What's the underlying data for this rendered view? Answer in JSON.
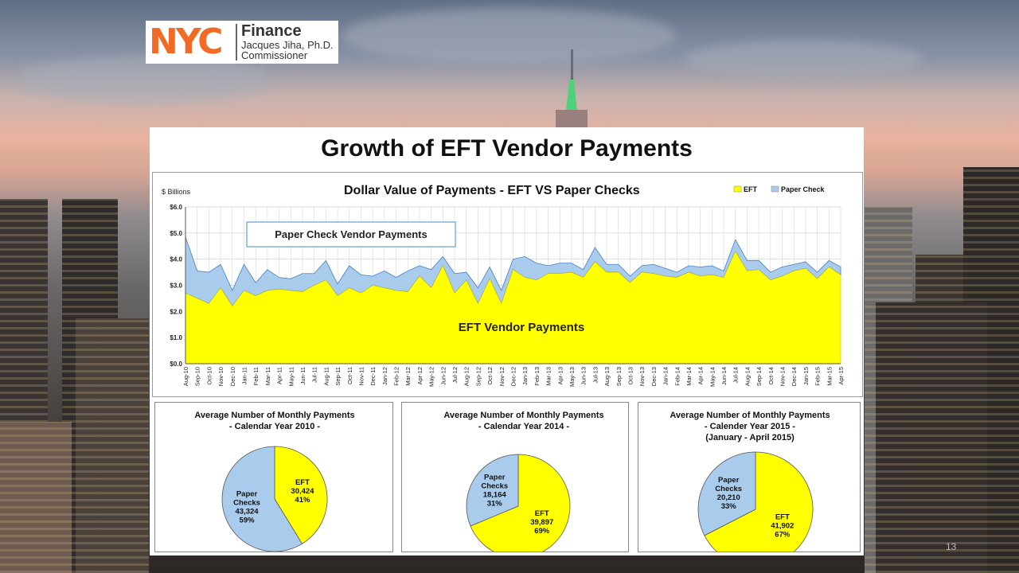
{
  "logo": {
    "mark": "NYC",
    "line1": "Finance",
    "line2": "Jacques Jiha, Ph.D.",
    "line3": "Commissioner"
  },
  "slide": {
    "title": "Growth of EFT Vendor Payments",
    "page_number": "13"
  },
  "colors": {
    "eft": "#ffff00",
    "paper": "#a9cbec",
    "outline": "#4a7fc0",
    "logo": "#f26a23"
  },
  "chart_data": [
    {
      "type": "area",
      "title": "Dollar Value of Payments - EFT VS Paper Checks",
      "ylabel": "$ Billions",
      "ylim": [
        0,
        6
      ],
      "yticks": [
        "$0.0",
        "$1.0",
        "$2.0",
        "$3.0",
        "$4.0",
        "$5.0",
        "$6.0"
      ],
      "grid": true,
      "legend": {
        "position": "top-right",
        "items": [
          "EFT",
          "Paper Check"
        ]
      },
      "annotations": [
        "Paper Check Vendor Payments",
        "EFT Vendor Payments"
      ],
      "x": [
        "Aug-10",
        "Sep-10",
        "Oct-10",
        "Nov-10",
        "Dec-10",
        "Jan-11",
        "Feb-11",
        "Mar-11",
        "Apr-11",
        "May-11",
        "Jun-11",
        "Jul-11",
        "Aug-11",
        "Sep-11",
        "Oct-11",
        "Nov-11",
        "Dec-11",
        "Jan-12",
        "Feb-12",
        "Mar-12",
        "Apr-12",
        "May-12",
        "Jun-12",
        "Jul-12",
        "Aug-12",
        "Sep-12",
        "Oct-12",
        "Nov-12",
        "Dec-12",
        "Jan-13",
        "Feb-13",
        "Mar-13",
        "Apr-13",
        "May-13",
        "Jun-13",
        "Jul-13",
        "Aug-13",
        "Sep-13",
        "Oct-13",
        "Nov-13",
        "Dec-13",
        "Jan-14",
        "Feb-14",
        "Mar-14",
        "Apr-14",
        "May-14",
        "Jun-14",
        "Jul-14",
        "Aug-14",
        "Sep-14",
        "Oct-14",
        "Nov-14",
        "Dec-14",
        "Jan-15",
        "Feb-15",
        "Mar-15",
        "Apr-15"
      ],
      "series": [
        {
          "name": "EFT",
          "values": [
            2.7,
            2.5,
            2.3,
            2.9,
            2.2,
            2.8,
            2.6,
            2.8,
            2.85,
            2.8,
            2.75,
            3.0,
            3.2,
            2.6,
            2.9,
            2.7,
            3.0,
            2.9,
            2.8,
            2.75,
            3.35,
            2.9,
            3.75,
            2.7,
            3.2,
            2.3,
            3.25,
            2.3,
            3.6,
            3.3,
            3.2,
            3.45,
            3.45,
            3.5,
            3.3,
            3.9,
            3.5,
            3.5,
            3.1,
            3.5,
            3.45,
            3.35,
            3.3,
            3.5,
            3.35,
            3.4,
            3.3,
            4.3,
            3.55,
            3.6,
            3.2,
            3.35,
            3.55,
            3.65,
            3.25,
            3.7,
            3.4
          ]
        },
        {
          "name": "Paper Check",
          "values": [
            2.15,
            1.05,
            1.2,
            0.9,
            0.6,
            1.0,
            0.5,
            0.8,
            0.45,
            0.45,
            0.7,
            0.45,
            0.75,
            0.45,
            0.85,
            0.7,
            0.35,
            0.65,
            0.5,
            0.8,
            0.4,
            0.7,
            0.35,
            0.75,
            0.3,
            0.6,
            0.45,
            0.5,
            0.4,
            0.8,
            0.65,
            0.3,
            0.4,
            0.35,
            0.3,
            0.55,
            0.3,
            0.3,
            0.25,
            0.25,
            0.35,
            0.3,
            0.2,
            0.25,
            0.35,
            0.35,
            0.25,
            0.45,
            0.4,
            0.35,
            0.3,
            0.35,
            0.25,
            0.25,
            0.25,
            0.25,
            0.3
          ]
        }
      ]
    },
    {
      "type": "pie",
      "title": "Average Number of Monthly Payments",
      "subtitle": "- Calendar Year 2010 -",
      "subtitle2": "",
      "slices": [
        {
          "name": "EFT",
          "value": 30424,
          "label": [
            "EFT",
            "30,424",
            "41%"
          ]
        },
        {
          "name": "Paper Checks",
          "value": 43324,
          "label": [
            "Paper",
            "Checks",
            "43,324",
            "59%"
          ]
        }
      ]
    },
    {
      "type": "pie",
      "title": "Average Number of Monthly Payments",
      "subtitle": "- Calendar Year 2014 -",
      "subtitle2": "",
      "slices": [
        {
          "name": "EFT",
          "value": 39897,
          "label": [
            "EFT",
            "39,897",
            "69%"
          ]
        },
        {
          "name": "Paper Checks",
          "value": 18164,
          "label": [
            "Paper",
            "Checks",
            "18,164",
            "31%"
          ]
        }
      ]
    },
    {
      "type": "pie",
      "title": "Average Number of Monthly Payments",
      "subtitle": "- Calender Year 2015 -",
      "subtitle2": "(January - April 2015)",
      "slices": [
        {
          "name": "EFT",
          "value": 41902,
          "label": [
            "EFT",
            "41,902",
            "67%"
          ]
        },
        {
          "name": "Paper Checks",
          "value": 20210,
          "label": [
            "Paper",
            "Checks",
            "20,210",
            "33%"
          ]
        }
      ]
    }
  ]
}
